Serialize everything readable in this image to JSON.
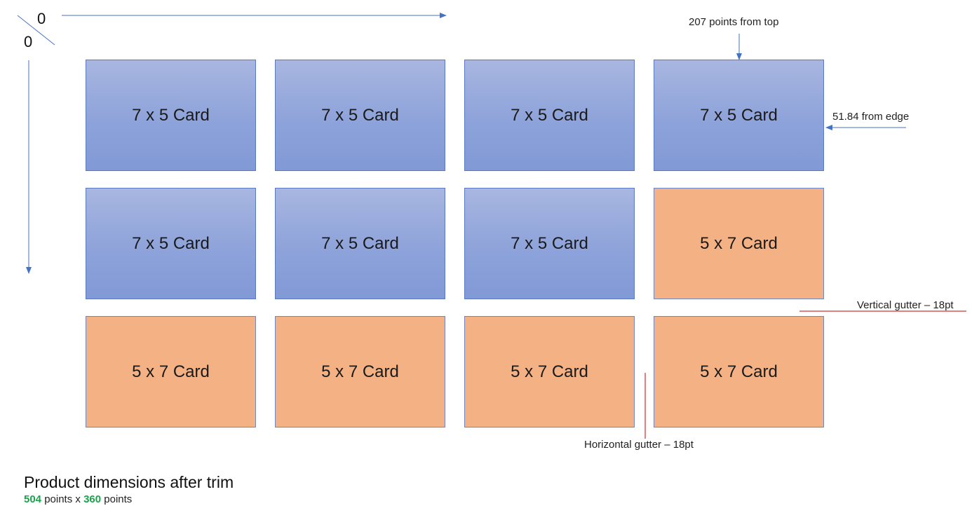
{
  "origin": {
    "x_label": "0",
    "y_label": "0"
  },
  "cards": [
    {
      "label": "7 x 5 Card",
      "kind": "landscape"
    },
    {
      "label": "7 x 5 Card",
      "kind": "landscape"
    },
    {
      "label": "7 x 5 Card",
      "kind": "landscape"
    },
    {
      "label": "7 x 5 Card",
      "kind": "landscape"
    },
    {
      "label": "7 x 5 Card",
      "kind": "landscape"
    },
    {
      "label": "7 x 5 Card",
      "kind": "landscape"
    },
    {
      "label": "7 x 5 Card",
      "kind": "landscape"
    },
    {
      "label": "5 x 7 Card",
      "kind": "portrait"
    },
    {
      "label": "5 x 7 Card",
      "kind": "portrait"
    },
    {
      "label": "5 x 7 Card",
      "kind": "portrait"
    },
    {
      "label": "5 x 7 Card",
      "kind": "portrait"
    },
    {
      "label": "5 x 7 Card",
      "kind": "portrait"
    }
  ],
  "annotations": {
    "top_offset": "207 points from top",
    "edge_offset": "51.84 from edge",
    "vertical_gutter": "Vertical gutter – 18pt",
    "horizontal_gutter": "Horizontal gutter – 18pt"
  },
  "footer": {
    "title": "Product dimensions after trim",
    "width_value": "504",
    "width_unit": " points x ",
    "height_value": "360",
    "height_unit": " points"
  },
  "colors": {
    "landscape_card": "#8ea3da",
    "portrait_card": "#f4b183",
    "arrow": "#4472c4",
    "gutter_line": "#c00000",
    "dimension_number": "#1aa34a"
  }
}
